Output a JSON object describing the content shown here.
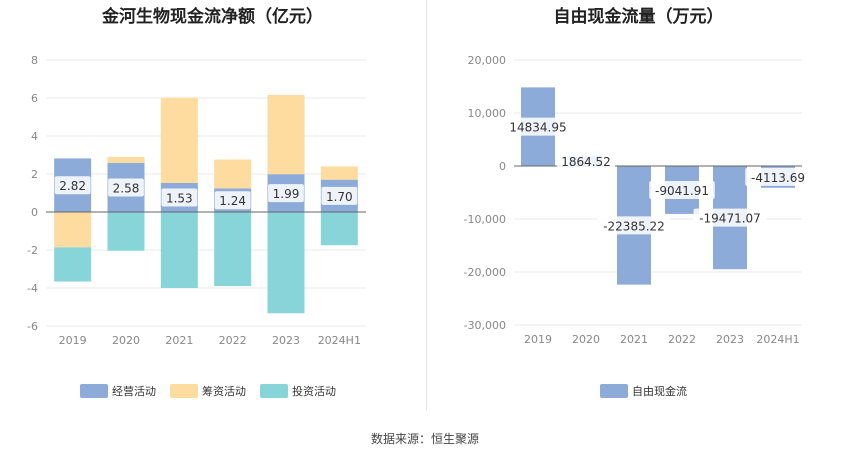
{
  "charts": {
    "left": {
      "title": "金河生物现金流净额（亿元）"
    },
    "right": {
      "title": "自由现金流量（万元）"
    }
  },
  "source": "数据来源：恒生聚源",
  "chart_data": [
    {
      "type": "bar",
      "stacked": true,
      "title": "金河生物现金流净额（亿元）",
      "categories": [
        "2019",
        "2020",
        "2021",
        "2022",
        "2023",
        "2024H1"
      ],
      "ylim": [
        -6,
        8
      ],
      "yticks": [
        -6,
        -4,
        -2,
        0,
        2,
        4,
        6,
        8
      ],
      "grid": true,
      "legend_position": "bottom",
      "series": [
        {
          "name": "经营活动",
          "color": "#8dabd9",
          "values": [
            2.82,
            2.58,
            1.53,
            1.24,
            1.99,
            1.7
          ],
          "labels": [
            "2.82",
            "2.58",
            "1.53",
            "1.24",
            "1.99",
            "1.70"
          ]
        },
        {
          "name": "筹资活动",
          "color": "#fedb9f",
          "values": [
            -1.86,
            0.32,
            4.49,
            1.52,
            4.17,
            0.7
          ]
        },
        {
          "name": "投资活动",
          "color": "#87d5d9",
          "values": [
            -1.8,
            -2.04,
            -4.0,
            -3.9,
            -5.33,
            -1.75
          ]
        }
      ]
    },
    {
      "type": "bar",
      "title": "自由现金流量（万元）",
      "categories": [
        "2019",
        "2020",
        "2021",
        "2022",
        "2023",
        "2024H1"
      ],
      "ylim": [
        -30000,
        20000
      ],
      "yticks": [
        -30000,
        -20000,
        -10000,
        0,
        10000,
        20000
      ],
      "ytick_labels": [
        "-30,000",
        "-20,000",
        "-10,000",
        "0",
        "10,000",
        "20,000"
      ],
      "grid": true,
      "legend_position": "bottom",
      "series": [
        {
          "name": "自由现金流",
          "color": "#8dabd9",
          "values": [
            14834.95,
            1864.52,
            -22385.22,
            -9041.91,
            -19471.07,
            -4113.69
          ],
          "labels": [
            "14834.95",
            "1864.52",
            "-22385.22",
            "-9041.91",
            "-19471.07",
            "-4113.69"
          ]
        }
      ]
    }
  ]
}
